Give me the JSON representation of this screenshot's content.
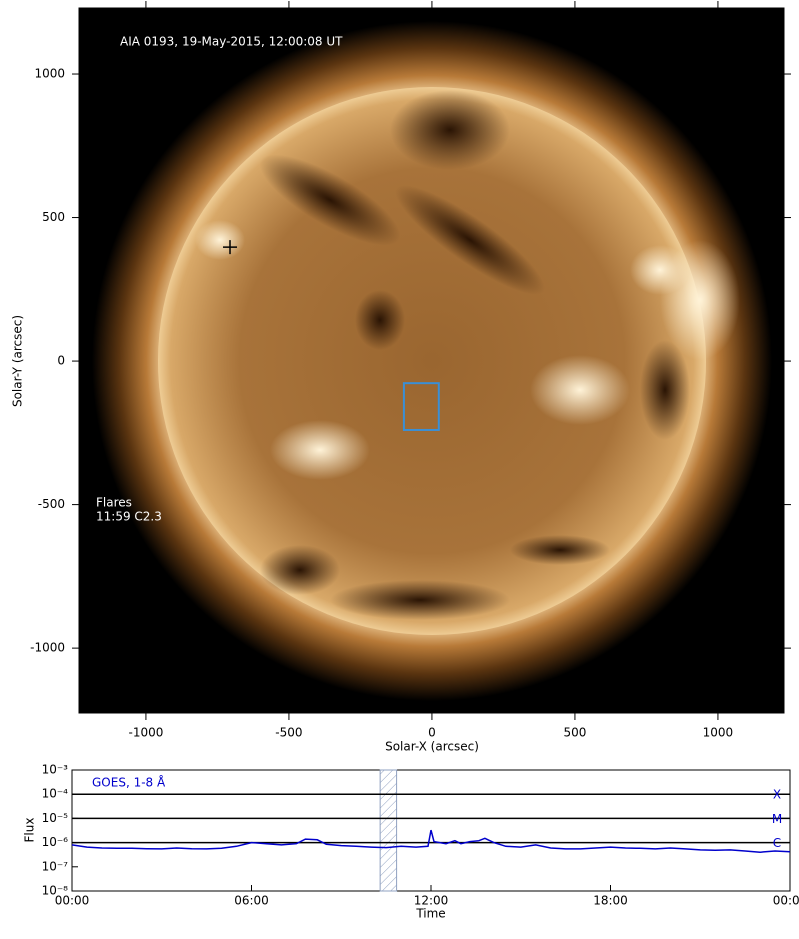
{
  "chart_data": [
    {
      "type": "image",
      "annotation": "AIA 0193, 19-May-2015, 12:00:08 UT",
      "xlabel": "Solar-X (arcsec)",
      "ylabel": "Solar-Y (arcsec)",
      "xlim": [
        -1234,
        1231
      ],
      "ylim": [
        -1226,
        1230
      ],
      "xticks": [
        -1000,
        -500,
        0,
        500,
        1000
      ],
      "yticks": [
        -1000,
        -500,
        0,
        500,
        1000
      ],
      "flares_label": "Flares",
      "flares": [
        "11:59 C2.3"
      ],
      "marker": {
        "x": -706,
        "y": 397
      },
      "box": {
        "x": [
          -98,
          24
        ],
        "y": [
          -240,
          -77
        ],
        "color": "#3a8fd6"
      }
    },
    {
      "type": "line",
      "log_y": true,
      "annotation": "GOES, 1-8 Å",
      "xlabel": "Time",
      "ylabel": "Flux",
      "xlim": [
        0,
        24
      ],
      "ylim": [
        1e-08,
        0.001
      ],
      "xticks": [
        {
          "value": 0,
          "label": "00:00"
        },
        {
          "value": 6,
          "label": "06:00"
        },
        {
          "value": 12,
          "label": "12:00"
        },
        {
          "value": 18,
          "label": "18:00"
        },
        {
          "value": 24,
          "label": "00:00"
        }
      ],
      "yticks": [
        {
          "value": 1e-08,
          "label": "10⁻⁸"
        },
        {
          "value": 1e-07,
          "label": "10⁻⁷"
        },
        {
          "value": 1e-06,
          "label": "10⁻⁶"
        },
        {
          "value": 1e-05,
          "label": "10⁻⁵"
        },
        {
          "value": 0.0001,
          "label": "10⁻⁴"
        },
        {
          "value": 0.001,
          "label": "10⁻³"
        }
      ],
      "levels": [
        {
          "value": 0.0001,
          "label": "X"
        },
        {
          "value": 1e-05,
          "label": "M"
        },
        {
          "value": 1e-06,
          "label": "C"
        }
      ],
      "span": [
        10.3,
        10.85
      ],
      "x": [
        0,
        0.5,
        1,
        1.5,
        2,
        2.5,
        3,
        3.5,
        4,
        4.5,
        5,
        5.5,
        6,
        6.5,
        7,
        7.5,
        7.8,
        8.2,
        8.5,
        9,
        9.5,
        10,
        10.5,
        11,
        11.5,
        11.9,
        12.0,
        12.1,
        12.5,
        12.8,
        13,
        13.3,
        13.6,
        13.8,
        14.1,
        14.5,
        15,
        15.5,
        16,
        16.5,
        17,
        17.5,
        18,
        18.5,
        19,
        19.5,
        20,
        20.5,
        21,
        21.5,
        22,
        22.5,
        23,
        23.5,
        24
      ],
      "series": [
        {
          "name": "GOES 1-8",
          "color": "#0000cc",
          "values": [
            8e-07,
            6.5e-07,
            6e-07,
            5.8e-07,
            5.8e-07,
            5.6e-07,
            5.5e-07,
            6e-07,
            5.6e-07,
            5.5e-07,
            5.8e-07,
            7e-07,
            1e-06,
            9e-07,
            8e-07,
            9e-07,
            1.4e-06,
            1.3e-06,
            8.5e-07,
            7.5e-07,
            7e-07,
            6.5e-07,
            6.2e-07,
            7e-07,
            6.5e-07,
            7e-07,
            3.3e-06,
            1.1e-06,
            9e-07,
            1.2e-06,
            9e-07,
            1.1e-06,
            1.2e-06,
            1.5e-06,
            1e-06,
            7e-07,
            6.5e-07,
            8e-07,
            6e-07,
            5.5e-07,
            5.5e-07,
            6e-07,
            6.5e-07,
            6e-07,
            5.8e-07,
            5.5e-07,
            6e-07,
            5.5e-07,
            5e-07,
            4.8e-07,
            5e-07,
            4.5e-07,
            4e-07,
            4.5e-07,
            4.2e-07
          ]
        }
      ]
    }
  ]
}
